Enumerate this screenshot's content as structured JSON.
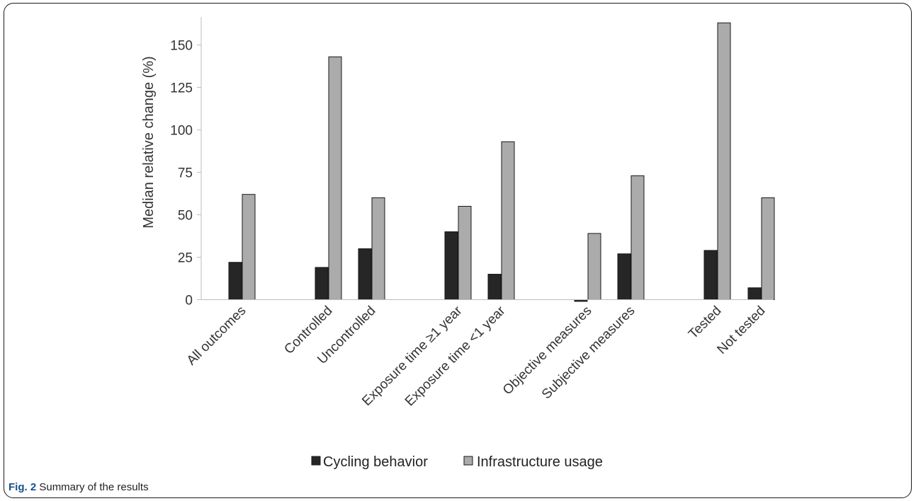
{
  "chart_data": {
    "type": "bar",
    "ylabel": "Median relative change (%)",
    "xlabel": "",
    "ylim": [
      0,
      165
    ],
    "yticks": [
      0,
      25,
      50,
      75,
      100,
      125,
      150
    ],
    "categories": [
      "All outcomes",
      "Controlled",
      "Uncontrolled",
      "Exposure time ≥1 year",
      "Exposure time <1 year",
      "Objective measures",
      "Subjective measures",
      "Tested",
      "Not tested"
    ],
    "groups": [
      [
        0
      ],
      [
        1,
        2
      ],
      [
        3,
        4
      ],
      [
        5,
        6
      ],
      [
        7,
        8
      ]
    ],
    "series": [
      {
        "name": "Cycling behavior",
        "color": "#262626",
        "values": [
          22,
          19,
          30,
          40,
          15,
          -1,
          27,
          29,
          7
        ]
      },
      {
        "name": "Infrastructure usage",
        "color": "#ababab",
        "values": [
          62,
          143,
          60,
          55,
          93,
          39,
          73,
          163,
          60
        ]
      }
    ],
    "legend_position": "bottom",
    "grid": false
  },
  "caption": {
    "label": "Fig. 2",
    "text": "Summary of the results"
  }
}
